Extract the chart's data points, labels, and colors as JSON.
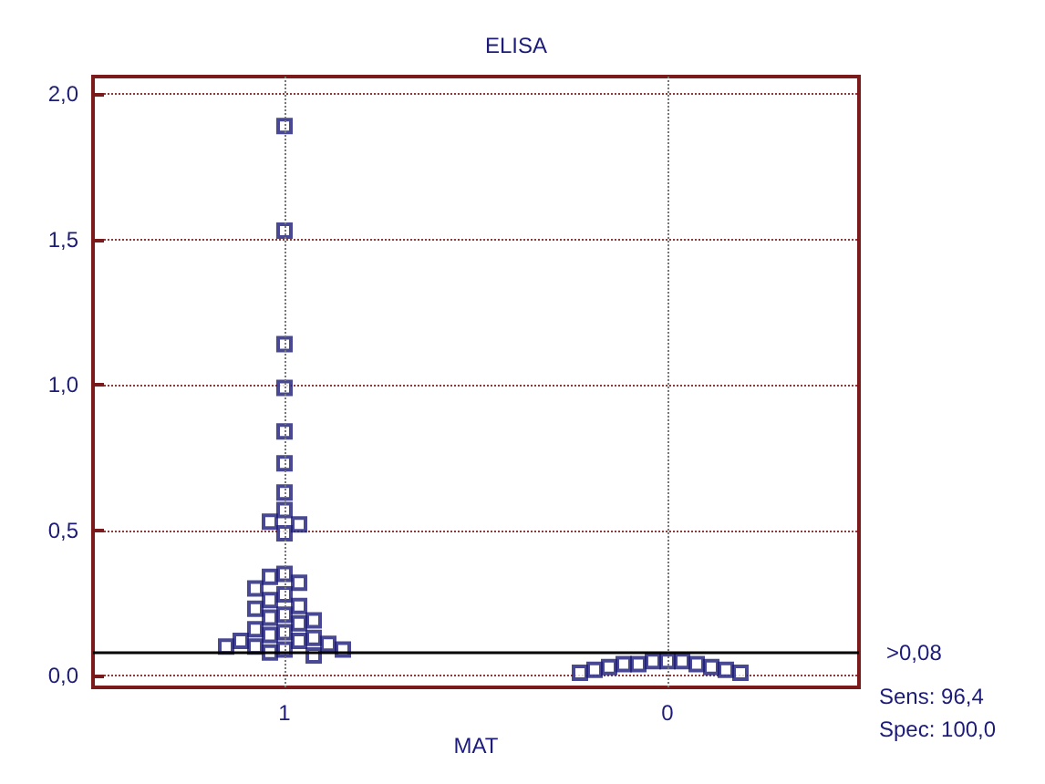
{
  "chart_data": {
    "type": "scatter",
    "title": "ELISA",
    "xlabel": "MAT",
    "categories": [
      "1",
      "0"
    ],
    "series": [
      {
        "color": "#1c1c78",
        "x": [
          "1",
          "1",
          "1",
          "1",
          "1",
          "1",
          "1",
          "1",
          "1",
          "1",
          "1",
          "1",
          "1",
          "1",
          "1",
          "1",
          "1",
          "1",
          "1",
          "1",
          "1",
          "1",
          "1",
          "1",
          "1",
          "1",
          "1",
          "1",
          "1",
          "1",
          "1",
          "1",
          "1",
          "1",
          "1",
          "1"
        ],
        "values": [
          1.89,
          1.53,
          1.14,
          0.99,
          0.84,
          0.73,
          0.63,
          0.57,
          0.53,
          0.52,
          0.49,
          0.35,
          0.34,
          0.32,
          0.3,
          0.28,
          0.26,
          0.24,
          0.23,
          0.21,
          0.2,
          0.19,
          0.18,
          0.16,
          0.15,
          0.14,
          0.13,
          0.12,
          0.12,
          0.11,
          0.1,
          0.1,
          0.09,
          0.09,
          0.08,
          0.07
        ]
      },
      {
        "color": "#1c1c78",
        "x": [
          "0",
          "0",
          "0",
          "0",
          "0",
          "0",
          "0",
          "0",
          "0",
          "0",
          "0",
          "0"
        ],
        "values": [
          0.05,
          0.05,
          0.05,
          0.04,
          0.04,
          0.04,
          0.03,
          0.03,
          0.02,
          0.02,
          0.01,
          0.01
        ]
      }
    ],
    "ylim": [
      -0.04,
      2.06
    ],
    "yticks": [
      {
        "value": 0,
        "label": "0,0"
      },
      {
        "value": 0.5,
        "label": "0,5"
      },
      {
        "value": 1,
        "label": "1,0"
      },
      {
        "value": 1.5,
        "label": "1,5"
      },
      {
        "value": 2,
        "label": "2,0"
      }
    ],
    "grid": true,
    "marker": "square",
    "ref_lines": [
      {
        "axis": "y",
        "value": 0.08,
        "label": ">0,08",
        "color": "#000000"
      }
    ],
    "annotations": [
      "Sens: 96,4",
      "Spec: 100,0"
    ]
  }
}
